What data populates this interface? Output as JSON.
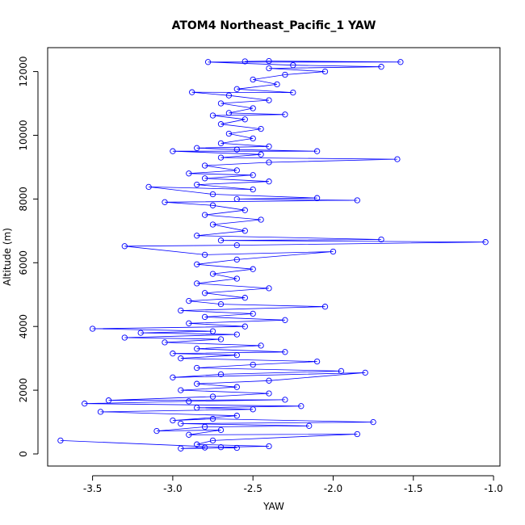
{
  "chart_data": {
    "type": "scatter",
    "title": "ATOM4 Northeast_Pacific_1 YAW",
    "xlabel": "YAW",
    "ylabel": "Altitude (m)",
    "xlim": [
      -3.78,
      -0.96
    ],
    "ylim": [
      -380,
      12750
    ],
    "x_ticks": [
      -3.5,
      -3.0,
      -2.5,
      -2.0,
      -1.5,
      -1.0
    ],
    "x_tick_labels": [
      "-3.5",
      "-3.0",
      "-2.5",
      "-2.0",
      "-1.5",
      "-1.0"
    ],
    "y_ticks": [
      0,
      2000,
      4000,
      6000,
      8000,
      10000,
      12000
    ],
    "y_tick_labels": [
      "0",
      "2000",
      "4000",
      "6000",
      "8000",
      "10000",
      "12000"
    ],
    "grid": false,
    "legend": "none",
    "colors": {
      "series": "#0000ff"
    },
    "series": [
      {
        "style": "points-and-lines",
        "points": [
          [
            -2.8,
            200
          ],
          [
            -2.95,
            170
          ],
          [
            -2.6,
            190
          ],
          [
            -3.7,
            420
          ],
          [
            -2.7,
            210
          ],
          [
            -2.4,
            240
          ],
          [
            -2.85,
            300
          ],
          [
            -2.75,
            420
          ],
          [
            -1.85,
            620
          ],
          [
            -2.9,
            600
          ],
          [
            -2.7,
            750
          ],
          [
            -3.1,
            720
          ],
          [
            -2.8,
            850
          ],
          [
            -2.15,
            880
          ],
          [
            -2.95,
            950
          ],
          [
            -1.75,
            1000
          ],
          [
            -2.75,
            1100
          ],
          [
            -3.0,
            1050
          ],
          [
            -2.6,
            1200
          ],
          [
            -3.45,
            1320
          ],
          [
            -2.5,
            1400
          ],
          [
            -2.85,
            1450
          ],
          [
            -2.2,
            1500
          ],
          [
            -3.55,
            1580
          ],
          [
            -2.9,
            1650
          ],
          [
            -2.3,
            1700
          ],
          [
            -3.4,
            1680
          ],
          [
            -2.75,
            1800
          ],
          [
            -2.4,
            1900
          ],
          [
            -2.95,
            2000
          ],
          [
            -2.6,
            2100
          ],
          [
            -2.85,
            2200
          ],
          [
            -2.4,
            2300
          ],
          [
            -1.8,
            2550
          ],
          [
            -3.0,
            2400
          ],
          [
            -2.7,
            2500
          ],
          [
            -1.95,
            2600
          ],
          [
            -2.85,
            2700
          ],
          [
            -2.5,
            2800
          ],
          [
            -2.1,
            2900
          ],
          [
            -2.95,
            3000
          ],
          [
            -2.6,
            3100
          ],
          [
            -3.0,
            3150
          ],
          [
            -2.3,
            3200
          ],
          [
            -2.85,
            3300
          ],
          [
            -2.45,
            3400
          ],
          [
            -3.05,
            3500
          ],
          [
            -2.7,
            3600
          ],
          [
            -3.3,
            3650
          ],
          [
            -2.6,
            3750
          ],
          [
            -3.2,
            3800
          ],
          [
            -2.75,
            3850
          ],
          [
            -3.5,
            3930
          ],
          [
            -2.55,
            4000
          ],
          [
            -2.9,
            4100
          ],
          [
            -2.3,
            4200
          ],
          [
            -2.8,
            4300
          ],
          [
            -2.5,
            4400
          ],
          [
            -2.95,
            4500
          ],
          [
            -2.05,
            4620
          ],
          [
            -2.7,
            4700
          ],
          [
            -2.9,
            4800
          ],
          [
            -2.55,
            4900
          ],
          [
            -2.8,
            5050
          ],
          [
            -2.4,
            5200
          ],
          [
            -2.85,
            5350
          ],
          [
            -2.6,
            5500
          ],
          [
            -2.75,
            5650
          ],
          [
            -2.5,
            5800
          ],
          [
            -2.85,
            5950
          ],
          [
            -2.6,
            6100
          ],
          [
            -2.0,
            6350
          ],
          [
            -2.8,
            6250
          ],
          [
            -3.3,
            6520
          ],
          [
            -2.6,
            6550
          ],
          [
            -1.05,
            6650
          ],
          [
            -2.7,
            6700
          ],
          [
            -1.7,
            6730
          ],
          [
            -2.85,
            6850
          ],
          [
            -2.55,
            7000
          ],
          [
            -2.75,
            7200
          ],
          [
            -2.45,
            7350
          ],
          [
            -2.8,
            7500
          ],
          [
            -2.55,
            7650
          ],
          [
            -2.75,
            7800
          ],
          [
            -3.05,
            7900
          ],
          [
            -1.85,
            7960
          ],
          [
            -2.6,
            8000
          ],
          [
            -2.1,
            8030
          ],
          [
            -2.75,
            8150
          ],
          [
            -3.15,
            8380
          ],
          [
            -2.5,
            8300
          ],
          [
            -2.85,
            8450
          ],
          [
            -2.4,
            8550
          ],
          [
            -2.8,
            8650
          ],
          [
            -2.5,
            8750
          ],
          [
            -2.9,
            8800
          ],
          [
            -2.6,
            8900
          ],
          [
            -2.8,
            9050
          ],
          [
            -2.4,
            9150
          ],
          [
            -1.6,
            9250
          ],
          [
            -2.7,
            9300
          ],
          [
            -2.45,
            9400
          ],
          [
            -3.0,
            9500
          ],
          [
            -2.1,
            9500
          ],
          [
            -2.6,
            9550
          ],
          [
            -2.85,
            9600
          ],
          [
            -2.4,
            9650
          ],
          [
            -2.7,
            9750
          ],
          [
            -2.5,
            9900
          ],
          [
            -2.65,
            10050
          ],
          [
            -2.45,
            10200
          ],
          [
            -2.7,
            10350
          ],
          [
            -2.55,
            10500
          ],
          [
            -2.75,
            10620
          ],
          [
            -2.3,
            10650
          ],
          [
            -2.65,
            10700
          ],
          [
            -2.5,
            10850
          ],
          [
            -2.7,
            11000
          ],
          [
            -2.4,
            11100
          ],
          [
            -2.65,
            11250
          ],
          [
            -2.88,
            11350
          ],
          [
            -2.25,
            11340
          ],
          [
            -2.6,
            11450
          ],
          [
            -2.35,
            11600
          ],
          [
            -2.5,
            11750
          ],
          [
            -2.3,
            11900
          ],
          [
            -2.05,
            12000
          ],
          [
            -2.4,
            12100
          ],
          [
            -1.7,
            12150
          ],
          [
            -2.25,
            12200
          ],
          [
            -2.78,
            12300
          ],
          [
            -1.58,
            12300
          ],
          [
            -2.4,
            12330
          ],
          [
            -2.55,
            12320
          ]
        ]
      }
    ]
  }
}
